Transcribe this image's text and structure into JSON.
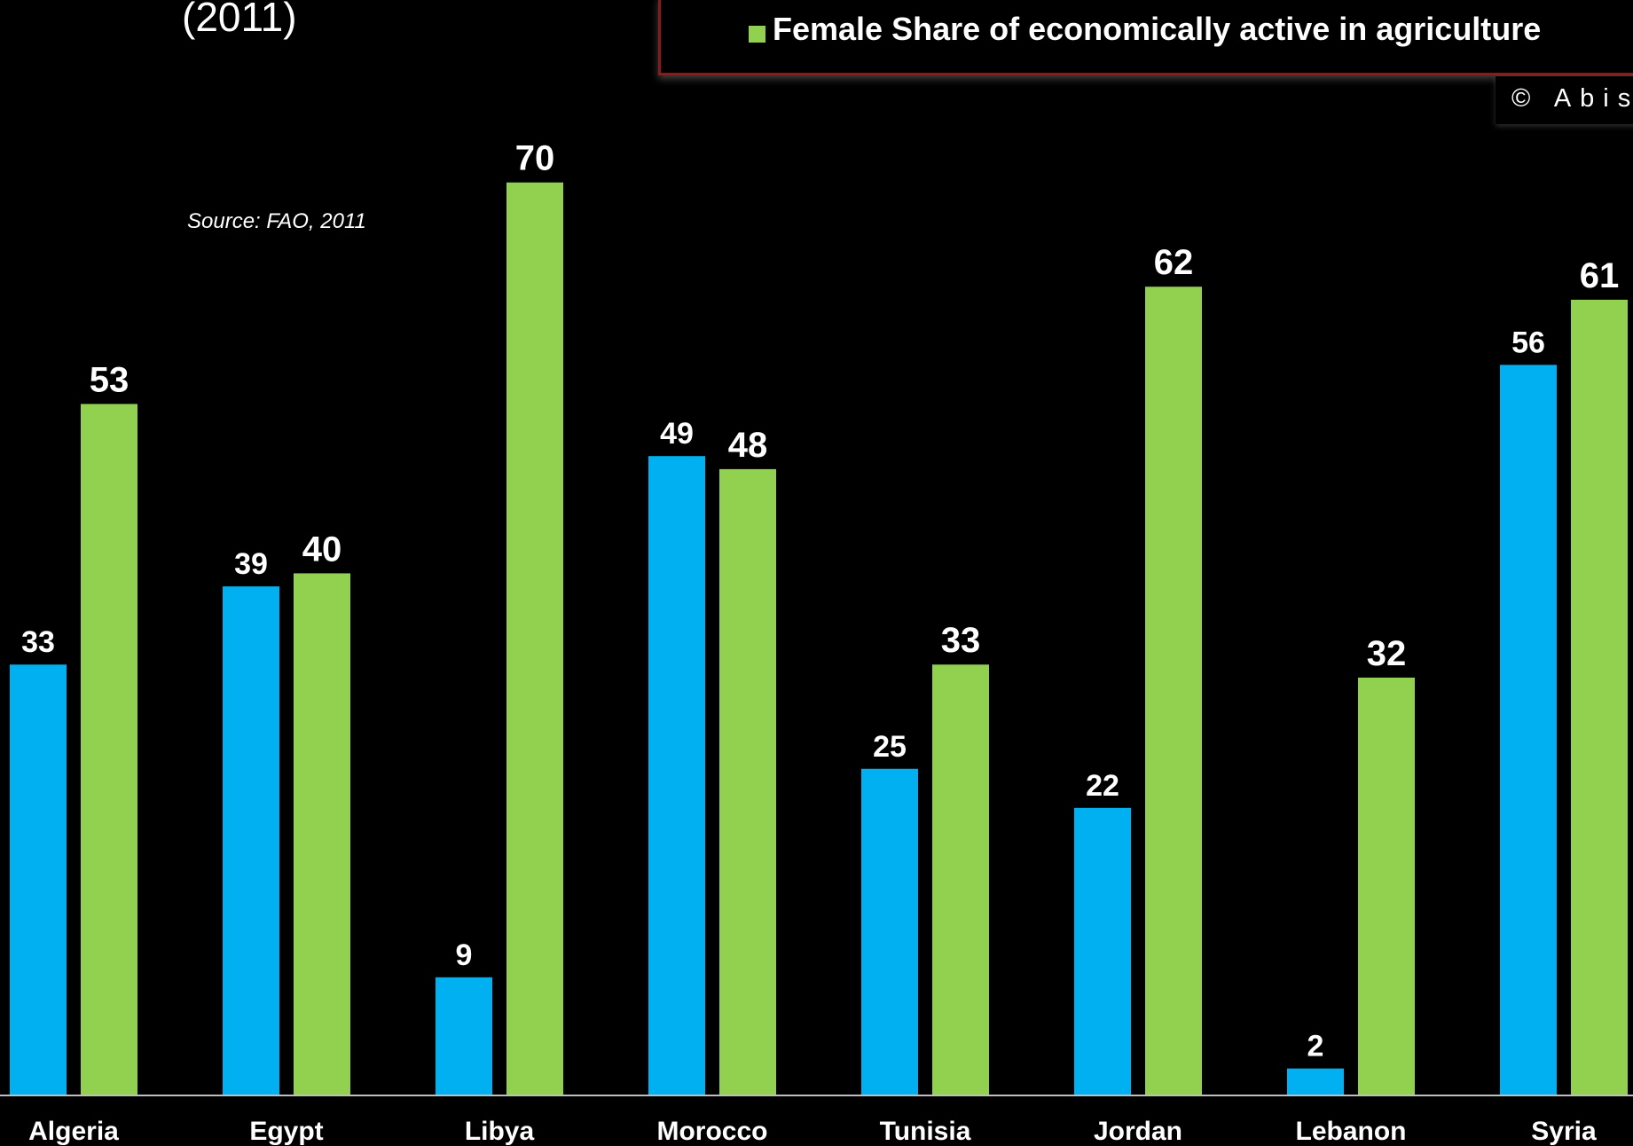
{
  "header": {
    "subtitle": "(2011)",
    "source": "Source: FAO, 2011",
    "copyright": "© Abis"
  },
  "legend": {
    "label": "Female Share of economically active in agriculture"
  },
  "colors": {
    "blue_series": "#00b0f0",
    "green_series": "#92d050",
    "background": "#000000",
    "text": "#ffffff"
  },
  "chart_data": {
    "type": "bar",
    "categories": [
      "Algeria",
      "Egypt",
      "Libya",
      "Morocco",
      "Tunisia",
      "Jordan",
      "Lebanon",
      "Syria"
    ],
    "series": [
      {
        "values": [
          33,
          39,
          9,
          49,
          25,
          22,
          2,
          56
        ],
        "color": "#00b0f0"
      },
      {
        "name": "Female Share of economically active in agriculture",
        "values": [
          53,
          40,
          70,
          48,
          33,
          62,
          32,
          61
        ],
        "color": "#92d050"
      }
    ],
    "ylim": [
      0,
      70
    ],
    "grid": false,
    "legend_position": "top-right"
  }
}
